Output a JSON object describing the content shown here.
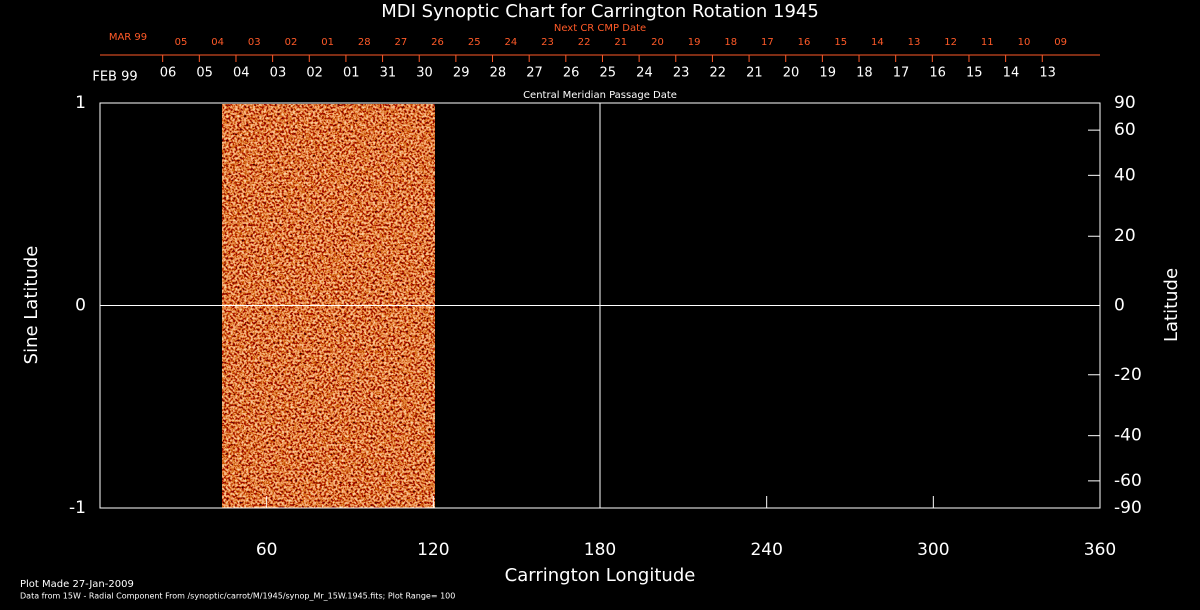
{
  "chart_data": {
    "type": "image",
    "title": "MDI Synoptic Chart for Carrington Rotation 1945",
    "xlabel": "Carrington Longitude",
    "ylabel": "Sine Latitude",
    "y2label": "Latitude",
    "xlim": [
      0,
      360
    ],
    "xticks": [
      60,
      120,
      180,
      240,
      300,
      360
    ],
    "ylim": [
      -1,
      1
    ],
    "yticks": [
      -1,
      0,
      1
    ],
    "y2lim": [
      -90,
      90
    ],
    "y2ticks": [
      -90,
      -60,
      -40,
      -20,
      0,
      20,
      40,
      60,
      90
    ],
    "y2scale": "sine",
    "xline": 180,
    "yline": 0,
    "top_axes": [
      {
        "label": "Next CR CMP Date",
        "month": "MAR 99",
        "color": "#ff5a28",
        "categories": [
          "05",
          "04",
          "03",
          "02",
          "01",
          "28",
          "27",
          "26",
          "25",
          "24",
          "23",
          "22",
          "21",
          "20",
          "19",
          "18",
          "17",
          "16",
          "15",
          "14",
          "13",
          "12",
          "11",
          "10",
          "09"
        ]
      },
      {
        "label": "Central Meridian Passage Date",
        "month": "FEB 99",
        "color": "#ffffff",
        "categories": [
          "06",
          "05",
          "04",
          "03",
          "02",
          "01",
          "31",
          "30",
          "29",
          "28",
          "27",
          "26",
          "25",
          "24",
          "23",
          "22",
          "21",
          "20",
          "19",
          "18",
          "17",
          "16",
          "15",
          "14",
          "13"
        ]
      }
    ],
    "notes": [
      "Plot Made 27-Jan-2009",
      "Data from 15W - Radial Component From /synoptic/carrot/M/1945/synop_Mr_15W.1945.fits; Plot Range= 100"
    ]
  }
}
